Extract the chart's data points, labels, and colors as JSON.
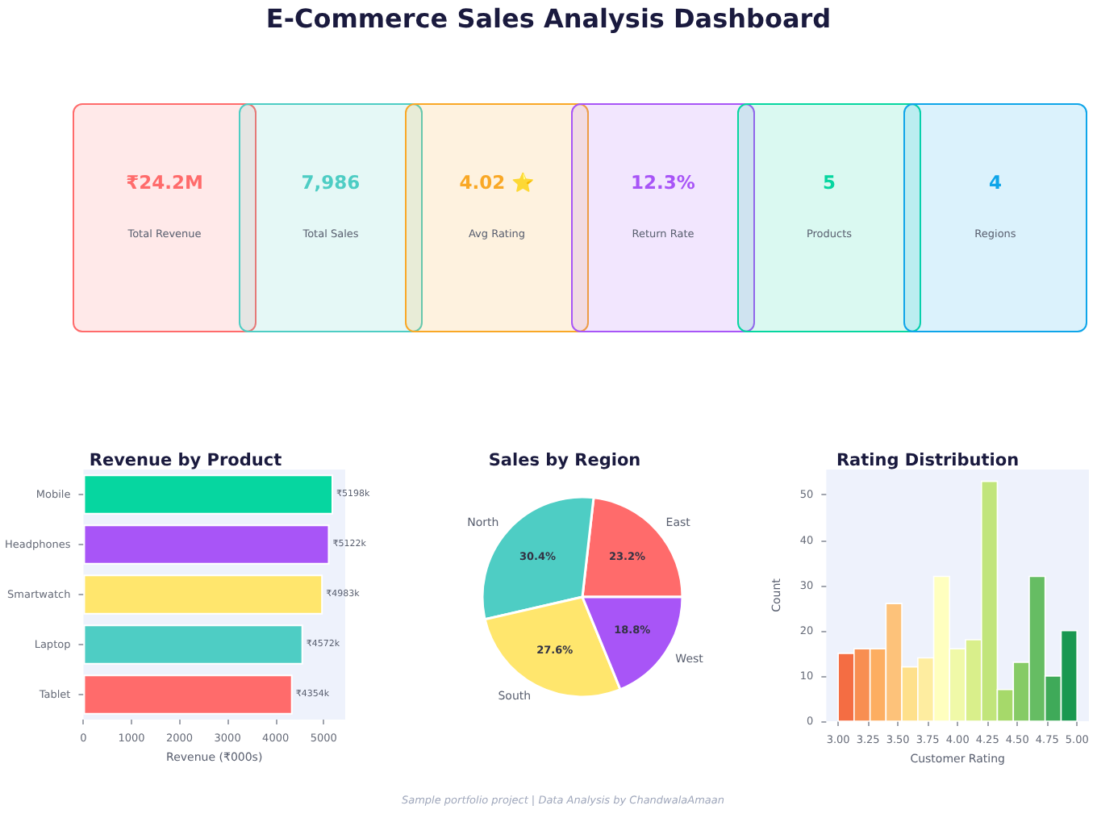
{
  "chart_data": [
    {
      "type": "other",
      "title": "E-Commerce Sales Analysis Dashboard",
      "categories": [
        "Total Revenue",
        "Total Sales",
        "Avg Rating",
        "Return Rate",
        "Products",
        "Regions"
      ],
      "value_labels": [
        "₹24.2M",
        "7,986",
        "4.02 ⭐",
        "12.3%",
        "5",
        "4"
      ],
      "colors": [
        "#ff6b6b",
        "#4ecdc4",
        "#f9a826",
        "#a855f7",
        "#06d6a0",
        "#0ea5e9"
      ],
      "annotations": [
        "Sample portfolio project | Data Analysis by ChandwalaAmaan"
      ]
    },
    {
      "type": "bar",
      "orientation": "horizontal",
      "title": "Revenue by Product",
      "xlabel": "Revenue (₹000s)",
      "categories": [
        "Mobile",
        "Headphones",
        "Smartwatch",
        "Laptop",
        "Tablet"
      ],
      "values": [
        5198,
        5122,
        4983,
        4572,
        4354
      ],
      "colors": [
        "#06d6a0",
        "#a855f7",
        "#ffe66d",
        "#4ecdc4",
        "#ff6b6b"
      ],
      "value_labels": [
        "₹5198k",
        "₹5122k",
        "₹4983k",
        "₹4572k",
        "₹4354k"
      ],
      "xlim": [
        0,
        5450
      ],
      "xticks": [
        0,
        1000,
        2000,
        3000,
        4000,
        5000
      ]
    },
    {
      "type": "pie",
      "title": "Sales by Region",
      "categories": [
        "East",
        "North",
        "South",
        "West"
      ],
      "values": [
        23.2,
        30.4,
        27.6,
        18.8
      ],
      "colors": [
        "#ff6b6b",
        "#4ecdc4",
        "#ffe66d",
        "#a855f7"
      ],
      "value_labels": [
        "23.2%",
        "30.4%",
        "27.6%",
        "18.8%"
      ]
    },
    {
      "type": "histogram",
      "title": "Rating Distribution",
      "xlabel": "Customer Rating",
      "ylabel": "Count",
      "bins": [
        3,
        3.133,
        3.267,
        3.4,
        3.533,
        3.667,
        3.8,
        3.933,
        4.067,
        4.2,
        4.333,
        4.467,
        4.6,
        4.733,
        4.867,
        5
      ],
      "values": [
        15,
        16,
        16,
        26,
        12,
        14,
        32,
        16,
        18,
        53,
        7,
        13,
        32,
        10,
        20
      ],
      "colors": [
        "#f46d43",
        "#f88e52",
        "#fdae61",
        "#fdc27a",
        "#fee08b",
        "#feeda0",
        "#ffffbf",
        "#f0f9a8",
        "#d9ef8b",
        "#c1e57b",
        "#a6d96a",
        "#86cb66",
        "#66bd63",
        "#3faa59",
        "#1a9850"
      ],
      "xlim": [
        2.9,
        5.1
      ],
      "xticks": [
        {
          "value": 3,
          "label": "3.00"
        },
        {
          "value": 3.25,
          "label": "3.25"
        },
        {
          "value": 3.5,
          "label": "3.50"
        },
        {
          "value": 3.75,
          "label": "3.75"
        },
        {
          "value": 4,
          "label": "4.00"
        },
        {
          "value": 4.25,
          "label": "4.25"
        },
        {
          "value": 4.5,
          "label": "4.50"
        },
        {
          "value": 4.75,
          "label": "4.75"
        },
        {
          "value": 5,
          "label": "5.00"
        }
      ],
      "ylim": [
        0,
        55.6
      ],
      "yticks": [
        0,
        10,
        20,
        30,
        40,
        50
      ]
    }
  ]
}
